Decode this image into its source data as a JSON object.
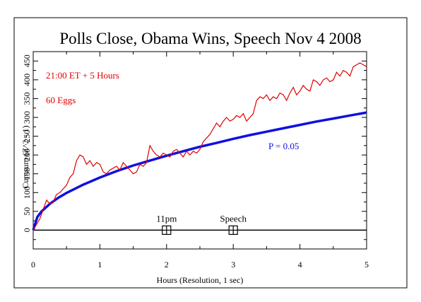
{
  "chart_data": {
    "type": "line",
    "title": "Polls Close, Obama Wins, Speech Nov 4 2008",
    "xlabel": "Hours (Resolution, 1 sec)",
    "ylabel": "Cumsum (Z^2 - 1)",
    "xlim": [
      0,
      5
    ],
    "ylim": [
      -50,
      475
    ],
    "x_ticks": [
      0,
      1,
      2,
      3,
      4,
      5
    ],
    "x_tick_labels": [
      "0",
      "1",
      "2",
      "3",
      "4",
      "5"
    ],
    "y_ticks": [
      0,
      50,
      100,
      150,
      200,
      250,
      300,
      350,
      400,
      450
    ],
    "y_tick_labels": [
      "0",
      "50",
      "100",
      "150",
      "200",
      "250",
      "300",
      "350",
      "400",
      "450"
    ],
    "grid": false,
    "colors": {
      "cumsum": "#e00000",
      "probability": "#1010e0",
      "baseline": "#000000",
      "frame": "#000000"
    },
    "annotations": [
      {
        "text": "21:00 ET + 5 Hours",
        "color": "#e00000"
      },
      {
        "text": "60 Eggs",
        "color": "#e00000"
      },
      {
        "text": "P = 0.05",
        "color": "#1010e0"
      }
    ],
    "markers": [
      {
        "label": "11pm",
        "x": 2.0,
        "y": 0
      },
      {
        "label": "Speech",
        "x": 3.0,
        "y": 0
      }
    ],
    "series": [
      {
        "id": "cumsum",
        "color": "#e00000",
        "x": [
          0,
          0.05,
          0.1,
          0.15,
          0.2,
          0.25,
          0.3,
          0.35,
          0.4,
          0.45,
          0.5,
          0.55,
          0.6,
          0.65,
          0.7,
          0.75,
          0.8,
          0.85,
          0.9,
          0.95,
          1.0,
          1.05,
          1.1,
          1.15,
          1.2,
          1.25,
          1.3,
          1.35,
          1.4,
          1.45,
          1.5,
          1.55,
          1.6,
          1.65,
          1.7,
          1.75,
          1.8,
          1.85,
          1.9,
          1.95,
          2.0,
          2.05,
          2.1,
          2.15,
          2.2,
          2.25,
          2.3,
          2.35,
          2.4,
          2.45,
          2.5,
          2.55,
          2.6,
          2.65,
          2.7,
          2.75,
          2.8,
          2.85,
          2.9,
          2.95,
          3.0,
          3.05,
          3.1,
          3.15,
          3.2,
          3.25,
          3.3,
          3.35,
          3.4,
          3.45,
          3.5,
          3.55,
          3.6,
          3.65,
          3.7,
          3.75,
          3.8,
          3.85,
          3.9,
          3.95,
          4.0,
          4.05,
          4.1,
          4.15,
          4.2,
          4.25,
          4.3,
          4.35,
          4.4,
          4.45,
          4.5,
          4.55,
          4.6,
          4.65,
          4.7,
          4.75,
          4.8,
          4.85,
          4.9,
          4.95,
          5.0
        ],
        "values": [
          0,
          15,
          30,
          55,
          80,
          70,
          75,
          95,
          100,
          110,
          120,
          140,
          150,
          185,
          200,
          195,
          175,
          185,
          170,
          180,
          175,
          155,
          150,
          160,
          165,
          170,
          160,
          180,
          170,
          160,
          150,
          155,
          175,
          170,
          180,
          225,
          210,
          200,
          195,
          205,
          200,
          195,
          210,
          215,
          205,
          195,
          210,
          200,
          210,
          205,
          215,
          235,
          245,
          255,
          270,
          285,
          275,
          290,
          300,
          290,
          295,
          305,
          300,
          310,
          290,
          300,
          310,
          345,
          355,
          350,
          360,
          345,
          355,
          350,
          365,
          360,
          345,
          365,
          380,
          360,
          370,
          385,
          375,
          370,
          400,
          395,
          385,
          400,
          405,
          395,
          400,
          420,
          410,
          425,
          420,
          410,
          435,
          440,
          445,
          440,
          435
        ]
      },
      {
        "id": "probability",
        "color": "#1010e0",
        "curve": "p=0.05 envelope, approximately 1.96*sqrt(2*N)",
        "x": [
          0,
          0.0625,
          0.125,
          0.25,
          0.375,
          0.5,
          0.75,
          1.0,
          1.25,
          1.5,
          1.75,
          2.0,
          2.25,
          2.5,
          2.75,
          3.0,
          3.25,
          3.5,
          3.75,
          4.0,
          4.25,
          4.5,
          4.75,
          5.0
        ],
        "values": [
          0,
          35,
          50,
          70,
          86,
          99,
          121,
          140,
          157,
          172,
          185,
          198,
          210,
          222,
          232,
          243,
          253,
          262,
          271,
          280,
          289,
          297,
          305,
          313
        ]
      }
    ]
  }
}
